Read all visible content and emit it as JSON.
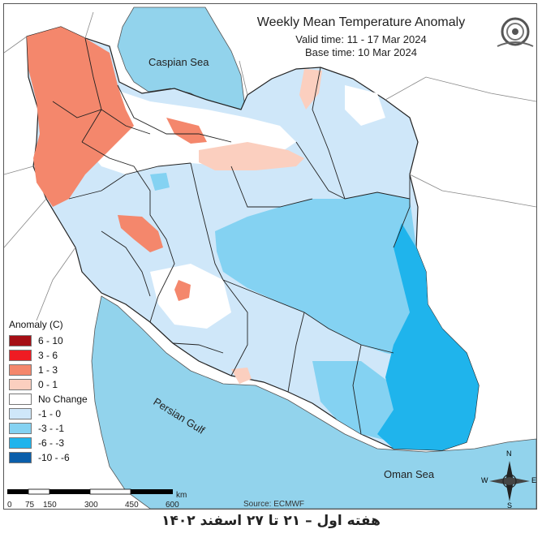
{
  "title": "Weekly Mean Temperature Anomaly",
  "valid_time": "Valid time: 11 - 17 Mar 2024",
  "base_time": "Base time: 10 Mar 2024",
  "places": {
    "caspian": "Caspian Sea",
    "gulf": "Persian Gulf",
    "oman": "Oman Sea"
  },
  "legend": {
    "title": "Anomaly (C)",
    "items": [
      {
        "label": "6 - 10",
        "color": "#a50f15"
      },
      {
        "label": "3 - 6",
        "color": "#ef1c23"
      },
      {
        "label": "1 - 3",
        "color": "#f4876c"
      },
      {
        "label": "0 - 1",
        "color": "#fbcfbf"
      },
      {
        "label": "No Change",
        "color": "#ffffff"
      },
      {
        "label": "-1 - 0",
        "color": "#cfe7f9"
      },
      {
        "label": "-3 - -1",
        "color": "#84d2f2"
      },
      {
        "label": "-6 - -3",
        "color": "#1fb4ec"
      },
      {
        "label": "-10 - -6",
        "color": "#0a5eaa"
      }
    ]
  },
  "scale": {
    "ticks": [
      "0",
      "75",
      "150",
      "300",
      "450",
      "600"
    ],
    "unit": "km"
  },
  "compass": {
    "n": "N",
    "s": "S",
    "e": "E",
    "w": "W"
  },
  "source": "Source: ECMWF",
  "footer": "هفته اول – ۲۱ تا ۲۷ اسفند ۱۴۰۲",
  "colors": {
    "sea": "#92d3ec",
    "land_outside": "#ffffff",
    "border": "#333333"
  }
}
